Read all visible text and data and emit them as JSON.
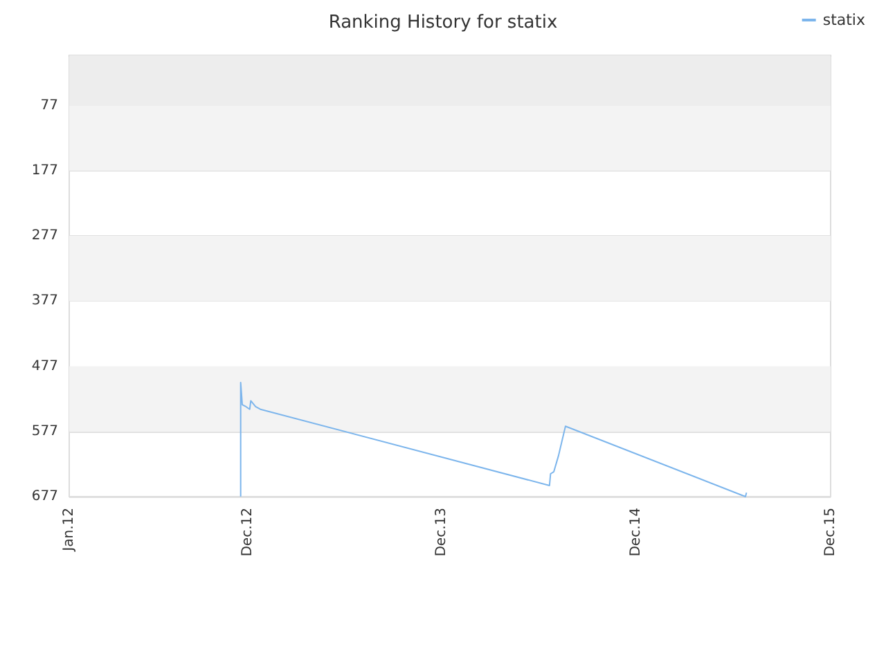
{
  "chart_data": {
    "type": "line",
    "title": "Ranking History for statix",
    "x": [
      "2012-11-18",
      "2012-11-18",
      "2012-11-21",
      "2012-11-28",
      "2012-12-05",
      "2012-12-07",
      "2012-12-16",
      "2012-12-25",
      "2014-06-21",
      "2014-06-23",
      "2014-06-29",
      "2014-07-08",
      "2014-07-12",
      "2014-07-21",
      "2015-06-24",
      "2015-06-26"
    ],
    "series": [
      {
        "name": "statix",
        "color": "#7cb5ec",
        "values": [
          677,
          502,
          536,
          539,
          543,
          530,
          539,
          543,
          660,
          642,
          639,
          614,
          600,
          569,
          677,
          671
        ]
      }
    ],
    "xlim": [
      "2012-01-01",
      "2015-12-01"
    ],
    "xticks": [
      {
        "value": "2012-01-01",
        "label": "Jan.12"
      },
      {
        "value": "2012-12-01",
        "label": "Dec.12"
      },
      {
        "value": "2013-12-01",
        "label": "Dec.13"
      },
      {
        "value": "2014-12-01",
        "label": "Dec.14"
      },
      {
        "value": "2015-12-01",
        "label": "Dec.15"
      }
    ],
    "ylim": [
      677,
      0
    ],
    "yticks": [
      77,
      177,
      277,
      377,
      477,
      577,
      677
    ],
    "bands": [
      {
        "axis": "y",
        "from": 0,
        "to": 77,
        "color": "#ededed"
      },
      {
        "axis": "y",
        "from": 77,
        "to": 177,
        "color": "#f3f3f3"
      },
      {
        "axis": "y",
        "from": 277,
        "to": 377,
        "color": "#f3f3f3"
      },
      {
        "axis": "y",
        "from": 477,
        "to": 577,
        "color": "#f3f3f3"
      }
    ],
    "grid": "y",
    "legend": "top right",
    "marker": "none",
    "line_style": "solid"
  }
}
